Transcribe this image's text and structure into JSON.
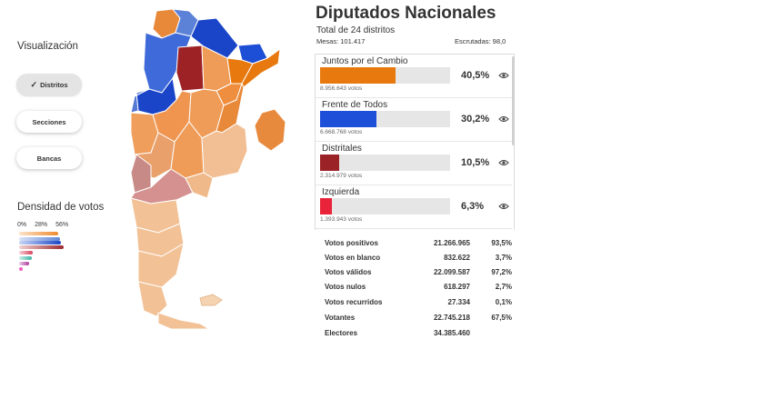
{
  "sidebar": {
    "visualization_title": "Visualización",
    "buttons": [
      {
        "label": "Distritos",
        "active": true
      },
      {
        "label": "Secciones",
        "active": false
      },
      {
        "label": "Bancas",
        "active": false
      }
    ],
    "density_title": "Densidad de votos",
    "scale_labels": [
      "0%",
      "28%",
      "56%"
    ],
    "density_colors": [
      "#ef8a2e",
      "#5f86d6",
      "#1a45c8",
      "#9c2a30",
      "#d8405a",
      "#3fb3a3",
      "#b23aa0",
      "#f05cc0"
    ]
  },
  "results": {
    "title": "Diputados Nacionales",
    "subtitle": "Total de 24 distritos",
    "mesas": "Mesas: 101.417",
    "escrutadas": "Escrutadas: 98,0",
    "parties": [
      {
        "name": "Juntos por el Cambio",
        "pct": "40,5%",
        "share": 0.405,
        "votes": "8.956.643 votos",
        "color": "#e8790e"
      },
      {
        "name": "Frente de Todos",
        "pct": "30,2%",
        "share": 0.302,
        "votes": "6.668.768 votos",
        "color": "#1e4fd8"
      },
      {
        "name": "Distritales",
        "pct": "10,5%",
        "share": 0.105,
        "votes": "2.314.979 votos",
        "color": "#9b2226"
      },
      {
        "name": "Izquierda",
        "pct": "6,3%",
        "share": 0.063,
        "votes": "1.393.943 votos",
        "color": "#e8233a"
      }
    ],
    "summary": [
      {
        "label": "Votos positivos",
        "value": "21.266.965",
        "pct": "93,5%"
      },
      {
        "label": "Votos en blanco",
        "value": "832.622",
        "pct": "3,7%"
      },
      {
        "label": "Votos válidos",
        "value": "22.099.587",
        "pct": "97,2%"
      },
      {
        "label": "Votos nulos",
        "value": "618.297",
        "pct": "2,7%"
      },
      {
        "label": "Votos recurridos",
        "value": "27.334",
        "pct": "0,1%"
      },
      {
        "label": "Votantes",
        "value": "22.745.218",
        "pct": "67,5%"
      },
      {
        "label": "Electores",
        "value": "34.385.460",
        "pct": ""
      }
    ]
  }
}
